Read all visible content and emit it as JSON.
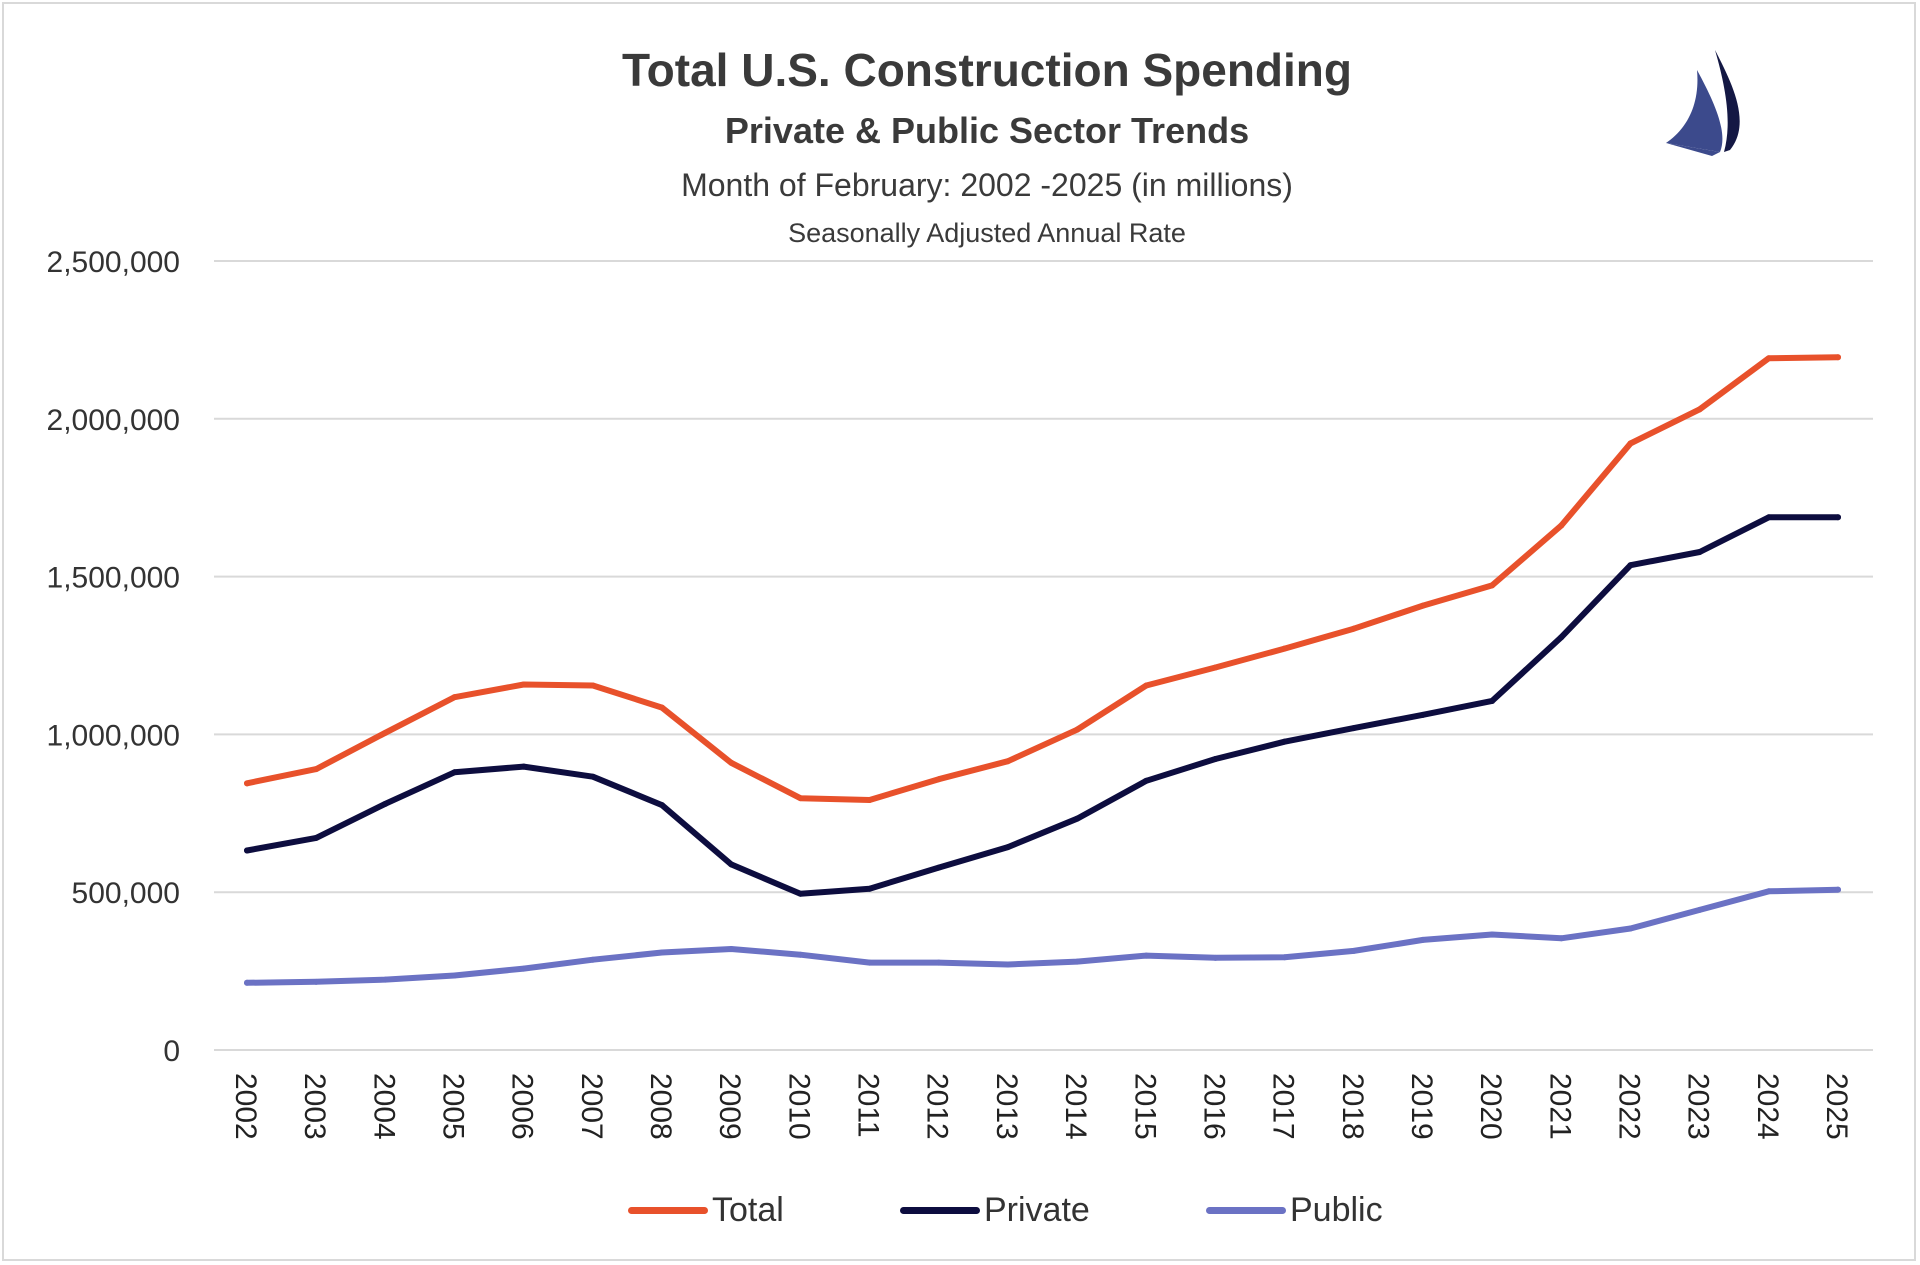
{
  "colors": {
    "total": "#e8512b",
    "private": "#0d0d3f",
    "public": "#6b72c4",
    "grid": "#d9d9d9",
    "text": "#333333",
    "logo_light": "#3c4a8c",
    "logo_dark": "#141844"
  },
  "logo": {
    "icon": "sailboat-icon"
  },
  "chart_data": {
    "type": "line",
    "title": "Total U.S. Construction Spending",
    "subtitle": "Private & Public Sector Trends",
    "subtitle2": "Month of February: 2002 -2025 (in millions)",
    "subtitle3": "Seasonally Adjusted Annual Rate",
    "xlabel": "",
    "ylabel": "",
    "ylim": [
      0,
      2500000
    ],
    "yticks": [
      0,
      500000,
      1000000,
      1500000,
      2000000,
      2500000
    ],
    "ytick_labels": [
      "0",
      "500,000",
      "1,000,000",
      "1,500,000",
      "2,000,000",
      "2,500,000"
    ],
    "grid": true,
    "legend_position": "bottom",
    "categories": [
      "2002",
      "2003",
      "2004",
      "2005",
      "2006",
      "2007",
      "2008",
      "2009",
      "2010",
      "2011",
      "2012",
      "2013",
      "2014",
      "2015",
      "2016",
      "2017",
      "2018",
      "2019",
      "2020",
      "2021",
      "2022",
      "2023",
      "2024",
      "2025"
    ],
    "series": [
      {
        "name": "Total",
        "key": "total",
        "values": [
          845000,
          890000,
          1005000,
          1118000,
          1158000,
          1155000,
          1085000,
          910000,
          798000,
          792000,
          858000,
          915000,
          1015000,
          1155000,
          1212000,
          1272000,
          1335000,
          1408000,
          1472000,
          1662000,
          1922000,
          2030000,
          2192000,
          2195000
        ]
      },
      {
        "name": "Private",
        "key": "private",
        "values": [
          632000,
          672000,
          780000,
          880000,
          898000,
          866000,
          776000,
          588000,
          495000,
          511000,
          578000,
          643000,
          733000,
          853000,
          922000,
          977000,
          1020000,
          1062000,
          1106000,
          1308000,
          1536000,
          1578000,
          1688000,
          1688000
        ]
      },
      {
        "name": "Public",
        "key": "public",
        "values": [
          213000,
          216000,
          223000,
          236000,
          258000,
          286000,
          309000,
          320000,
          302000,
          277000,
          277000,
          271000,
          280000,
          299000,
          292000,
          294000,
          314000,
          349000,
          366000,
          354000,
          385000,
          444000,
          503000,
          508000
        ]
      }
    ]
  }
}
